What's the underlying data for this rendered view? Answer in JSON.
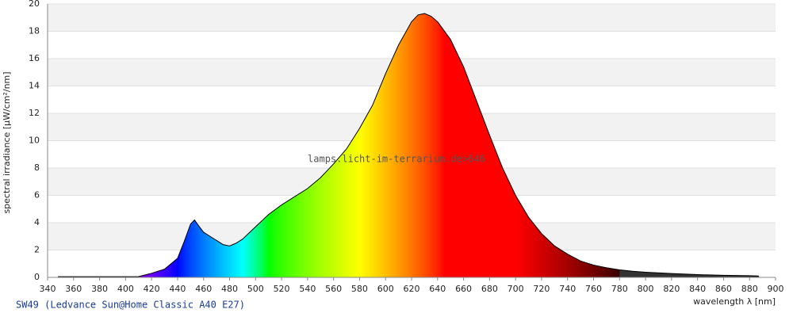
{
  "chart_data": {
    "type": "spectrum",
    "title": "SW49 (Ledvance Sun@Home Classic A40 E27)",
    "x_label": "wavelength λ [nm]",
    "y_label": "spectral irradiance [µW/cm²/nm]",
    "annotation": "lamps.licht-im-terrarium.de>646",
    "x": [
      348,
      360,
      380,
      400,
      410,
      420,
      430,
      440,
      445,
      450,
      453,
      456,
      460,
      465,
      470,
      475,
      480,
      485,
      490,
      500,
      510,
      520,
      530,
      540,
      550,
      560,
      570,
      580,
      590,
      600,
      610,
      620,
      625,
      630,
      635,
      640,
      650,
      660,
      670,
      680,
      690,
      700,
      710,
      720,
      730,
      740,
      750,
      760,
      770,
      780,
      790,
      800,
      820,
      840,
      860,
      880,
      887
    ],
    "values": [
      0.05,
      0.05,
      0.05,
      0.05,
      0.06,
      0.3,
      0.6,
      1.4,
      2.6,
      3.9,
      4.2,
      3.8,
      3.3,
      3.0,
      2.7,
      2.4,
      2.3,
      2.5,
      2.8,
      3.7,
      4.6,
      5.3,
      5.9,
      6.5,
      7.3,
      8.3,
      9.4,
      10.9,
      12.6,
      14.9,
      17.0,
      18.7,
      19.2,
      19.3,
      19.1,
      18.7,
      17.4,
      15.4,
      12.9,
      10.4,
      8.0,
      6.0,
      4.4,
      3.2,
      2.3,
      1.7,
      1.2,
      0.9,
      0.7,
      0.55,
      0.45,
      0.38,
      0.28,
      0.2,
      0.15,
      0.12,
      0.1
    ],
    "xlim": [
      340,
      900
    ],
    "ylim": [
      0,
      20
    ],
    "xticks": [
      340,
      360,
      380,
      400,
      420,
      440,
      460,
      480,
      500,
      520,
      540,
      560,
      580,
      600,
      620,
      640,
      660,
      680,
      700,
      720,
      740,
      760,
      780,
      800,
      820,
      840,
      860,
      880,
      900
    ],
    "yticks": [
      0,
      2,
      4,
      6,
      8,
      10,
      12,
      14,
      16,
      18,
      20
    ],
    "grid": true,
    "band_color": "#f2f2f2",
    "line_color": "#000000",
    "infrared_color": "#333333"
  }
}
